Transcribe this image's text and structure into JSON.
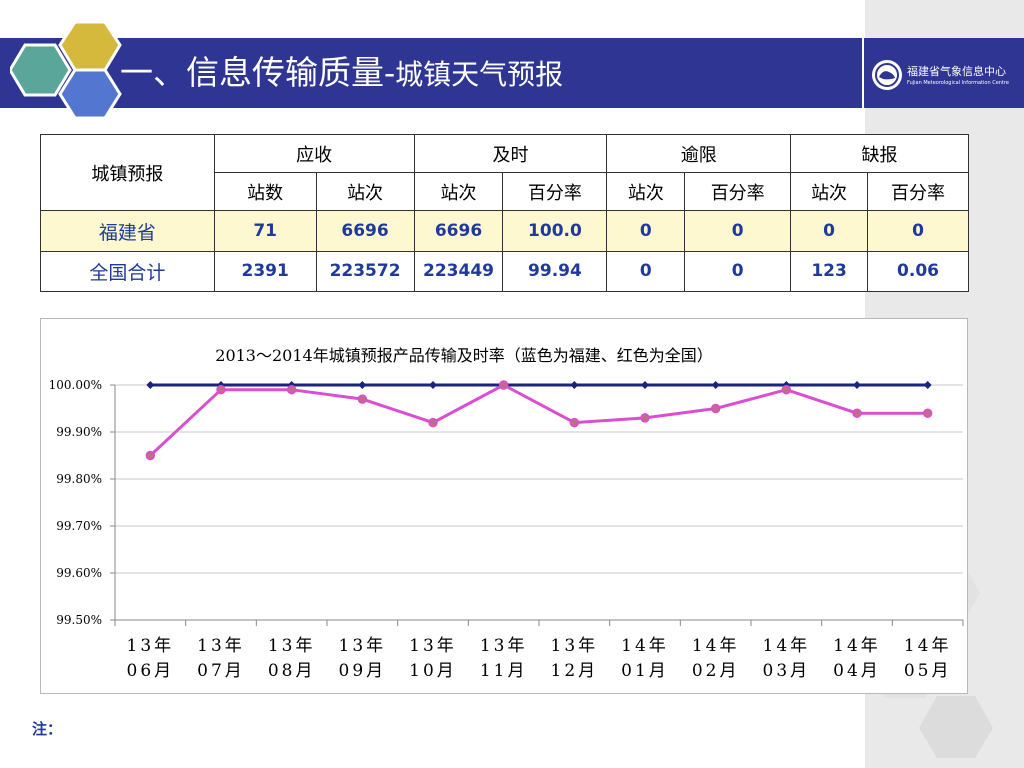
{
  "header": {
    "title_main": "一、信息传输质量-",
    "title_sub": "城镇天气预报",
    "logo_name": "福建省气象信息中心",
    "logo_english": "Fujian Meteorological Information Centre"
  },
  "table": {
    "corner_label": "城镇预报",
    "group_headers": [
      "应收",
      "及时",
      "逾限",
      "缺报"
    ],
    "sub_headers": [
      "站数",
      "站次",
      "站次",
      "百分率",
      "站次",
      "百分率",
      "站次",
      "百分率"
    ],
    "rows": [
      {
        "name": "福建省",
        "values": [
          "71",
          "6696",
          "6696",
          "100.0",
          "0",
          "0",
          "0",
          "0"
        ]
      },
      {
        "name": "全国合计",
        "values": [
          "2391",
          "223572",
          "223449",
          "99.94",
          "0",
          "0",
          "123",
          "0.06"
        ]
      }
    ]
  },
  "chart_data": {
    "type": "line",
    "title": "2013～2014年城镇预报产品传输及时率（蓝色为福建、红色为全国）",
    "categories": [
      [
        "13年",
        "06月"
      ],
      [
        "13年",
        "07月"
      ],
      [
        "13年",
        "08月"
      ],
      [
        "13年",
        "09月"
      ],
      [
        "13年",
        "10月"
      ],
      [
        "13年",
        "11月"
      ],
      [
        "13年",
        "12月"
      ],
      [
        "14年",
        "01月"
      ],
      [
        "14年",
        "02月"
      ],
      [
        "14年",
        "03月"
      ],
      [
        "14年",
        "04月"
      ],
      [
        "14年",
        "05月"
      ]
    ],
    "series": [
      {
        "color": "#1a237e",
        "values": [
          100.0,
          100.0,
          100.0,
          100.0,
          100.0,
          100.0,
          100.0,
          100.0,
          100.0,
          100.0,
          100.0,
          100.0
        ]
      },
      {
        "color": "#d94fd0",
        "values": [
          99.85,
          99.99,
          99.99,
          99.97,
          99.92,
          100.0,
          99.92,
          99.93,
          99.95,
          99.99,
          99.94,
          99.94
        ]
      }
    ],
    "ylim": [
      99.5,
      100.0
    ],
    "yticks": [
      "99.50%",
      "99.60%",
      "99.70%",
      "99.80%",
      "99.90%",
      "100.00%"
    ],
    "grid": true,
    "legend": "none"
  },
  "note": {
    "label": "注："
  }
}
